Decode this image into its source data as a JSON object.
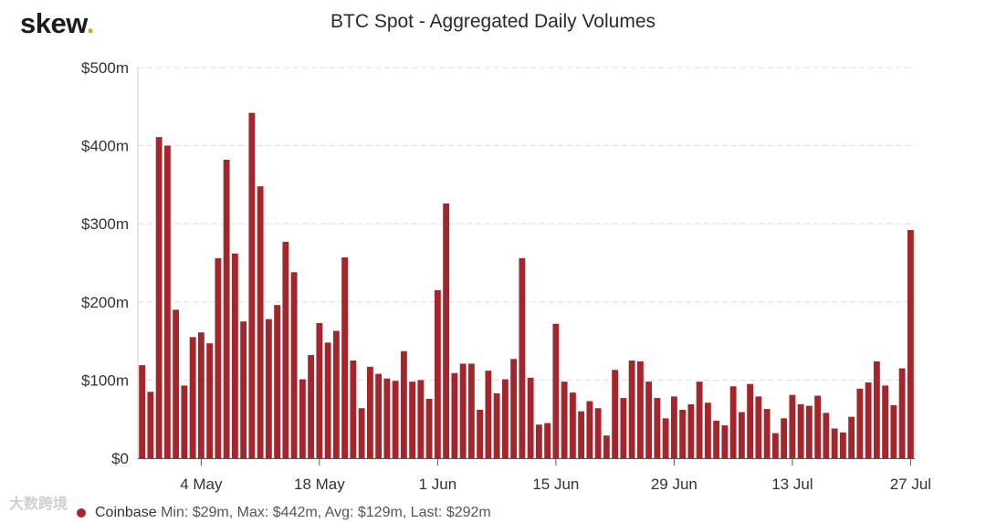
{
  "brand": {
    "name": "skew",
    "dot": "."
  },
  "watermark": "大数跨境",
  "legend": {
    "name": "Coinbase",
    "stats": "Min: $29m, Max: $442m, Avg: $129m, Last: $292m",
    "color": "#a4262c"
  },
  "chart_data": {
    "type": "bar",
    "title": "BTC Spot - Aggregated Daily Volumes",
    "xlabel": "",
    "ylabel": "",
    "ylim": [
      0,
      500
    ],
    "yticks": [
      0,
      100,
      200,
      300,
      400,
      500
    ],
    "ytick_labels": [
      "$0",
      "$100m",
      "$200m",
      "$300m",
      "$400m",
      "$500m"
    ],
    "grid": true,
    "xtick_labels": [
      {
        "label": "4 May",
        "index": 7
      },
      {
        "label": "18 May",
        "index": 21
      },
      {
        "label": "1 Jun",
        "index": 35
      },
      {
        "label": "15 Jun",
        "index": 49
      },
      {
        "label": "29 Jun",
        "index": 63
      },
      {
        "label": "13 Jul",
        "index": 77
      },
      {
        "label": "27 Jul",
        "index": 91
      }
    ],
    "series": [
      {
        "name": "Coinbase",
        "color": "#a4262c",
        "values": [
          119,
          85,
          411,
          400,
          190,
          93,
          155,
          161,
          147,
          256,
          382,
          262,
          175,
          442,
          348,
          178,
          196,
          277,
          238,
          101,
          132,
          173,
          148,
          163,
          257,
          125,
          64,
          117,
          108,
          102,
          99,
          137,
          98,
          100,
          76,
          215,
          326,
          109,
          121,
          121,
          62,
          112,
          83,
          101,
          127,
          256,
          103,
          43,
          45,
          172,
          98,
          84,
          60,
          73,
          64,
          29,
          113,
          77,
          125,
          124,
          98,
          77,
          51,
          79,
          62,
          69,
          98,
          71,
          48,
          42,
          92,
          59,
          95,
          79,
          63,
          32,
          51,
          81,
          69,
          67,
          80,
          58,
          38,
          33,
          53,
          89,
          97,
          124,
          93,
          68,
          115,
          292
        ]
      }
    ]
  }
}
